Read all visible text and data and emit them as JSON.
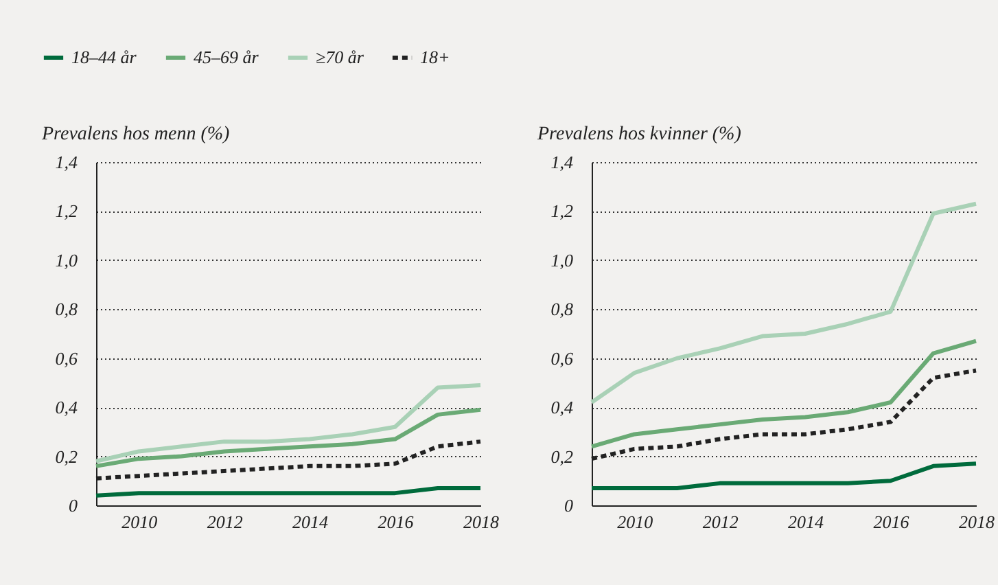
{
  "chart_data": [
    {
      "type": "line",
      "ylabel": "Prevalens hos menn (%)",
      "x": [
        2009,
        2010,
        2011,
        2012,
        2013,
        2014,
        2015,
        2016,
        2017,
        2018
      ],
      "series": [
        {
          "name": "18–44 år",
          "color": "#006b3c",
          "line_style": "solid",
          "values": [
            0.04,
            0.05,
            0.05,
            0.05,
            0.05,
            0.05,
            0.05,
            0.05,
            0.07,
            0.07
          ]
        },
        {
          "name": "45–69 år",
          "color": "#6aaa75",
          "line_style": "solid",
          "values": [
            0.16,
            0.19,
            0.2,
            0.22,
            0.23,
            0.24,
            0.25,
            0.27,
            0.37,
            0.39
          ]
        },
        {
          "name": "≥70 år",
          "color": "#a9d1b6",
          "line_style": "solid",
          "values": [
            0.18,
            0.22,
            0.24,
            0.26,
            0.26,
            0.27,
            0.29,
            0.32,
            0.48,
            0.49
          ]
        },
        {
          "name": "18+",
          "color": "#222222",
          "line_style": "dashed",
          "values": [
            0.11,
            0.12,
            0.13,
            0.14,
            0.15,
            0.16,
            0.16,
            0.17,
            0.24,
            0.26
          ]
        }
      ],
      "xlim": [
        2009,
        2018
      ],
      "xticks": [
        2010,
        2012,
        2014,
        2016,
        2018
      ],
      "ylim": [
        0,
        1.4
      ],
      "yticks": [
        0,
        {
          "value": 0.2,
          "label": "0,2"
        },
        {
          "value": 0.4,
          "label": "0,4"
        },
        {
          "value": 0.6,
          "label": "0,6"
        },
        {
          "value": 0.8,
          "label": "0,8"
        },
        {
          "value": 1.0,
          "label": "1,0"
        },
        {
          "value": 1.2,
          "label": "1,2"
        },
        {
          "value": 1.4,
          "label": "1,4"
        }
      ],
      "grid": "y",
      "legend": "top left",
      "marker": "none"
    },
    {
      "type": "line",
      "ylabel": "Prevalens hos kvinner (%)",
      "x": [
        2009,
        2010,
        2011,
        2012,
        2013,
        2014,
        2015,
        2016,
        2017,
        2018
      ],
      "series": [
        {
          "name": "18–44 år",
          "color": "#006b3c",
          "line_style": "solid",
          "values": [
            0.07,
            0.07,
            0.07,
            0.09,
            0.09,
            0.09,
            0.09,
            0.1,
            0.16,
            0.17
          ]
        },
        {
          "name": "45–69 år",
          "color": "#6aaa75",
          "line_style": "solid",
          "values": [
            0.24,
            0.29,
            0.31,
            0.33,
            0.35,
            0.36,
            0.38,
            0.42,
            0.62,
            0.67
          ]
        },
        {
          "name": "≥70 år",
          "color": "#a9d1b6",
          "line_style": "solid",
          "values": [
            0.42,
            0.54,
            0.6,
            0.64,
            0.69,
            0.7,
            0.74,
            0.79,
            1.19,
            1.23
          ]
        },
        {
          "name": "18+",
          "color": "#222222",
          "line_style": "dashed",
          "values": [
            0.19,
            0.23,
            0.24,
            0.27,
            0.29,
            0.29,
            0.31,
            0.34,
            0.52,
            0.55
          ]
        }
      ],
      "xlim": [
        2009,
        2018
      ],
      "xticks": [
        2010,
        2012,
        2014,
        2016,
        2018
      ],
      "ylim": [
        0,
        1.4
      ],
      "yticks": [
        0,
        {
          "value": 0.2,
          "label": "0,2"
        },
        {
          "value": 0.4,
          "label": "0,4"
        },
        {
          "value": 0.6,
          "label": "0,6"
        },
        {
          "value": 0.8,
          "label": "0,8"
        },
        {
          "value": 1.0,
          "label": "1,0"
        },
        {
          "value": 1.2,
          "label": "1,2"
        },
        {
          "value": 1.4,
          "label": "1,4"
        }
      ],
      "grid": "y",
      "legend": "top left",
      "marker": "none"
    }
  ]
}
